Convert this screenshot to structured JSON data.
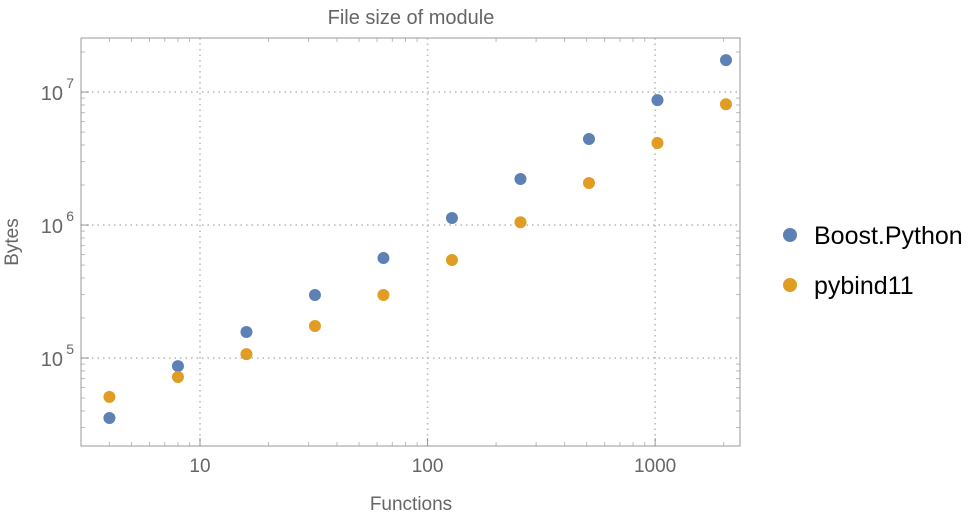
{
  "chart_data": {
    "type": "scatter",
    "title": "File size of module",
    "xlabel": "Functions",
    "ylabel": "Bytes",
    "xscale": "log",
    "yscale": "log",
    "xlim": [
      3.0,
      2360
    ],
    "ylim": [
      21800,
      25500000
    ],
    "grid": "dotted, at major decades",
    "legend_position": "right",
    "x_ticks": [
      {
        "value": 10,
        "label": "10"
      },
      {
        "value": 100,
        "label": "100"
      },
      {
        "value": 1000,
        "label": "1000"
      }
    ],
    "y_ticks": [
      {
        "value": 100000,
        "base": "10",
        "exp": "5"
      },
      {
        "value": 1000000,
        "base": "10",
        "exp": "6"
      },
      {
        "value": 10000000,
        "base": "10",
        "exp": "7"
      }
    ],
    "x": [
      4,
      8,
      16,
      32,
      64,
      128,
      256,
      512,
      1024,
      2048
    ],
    "series": [
      {
        "name": "Boost.Python",
        "color": "#5E81B5",
        "values": [
          35400,
          87000,
          157000,
          298000,
          565000,
          1130000,
          2220000,
          4440000,
          8700000,
          17400000
        ]
      },
      {
        "name": "pybind11",
        "color": "#E19C24",
        "values": [
          51000,
          72000,
          107000,
          174000,
          298000,
          546000,
          1050000,
          2070000,
          4140000,
          8100000
        ]
      }
    ]
  }
}
